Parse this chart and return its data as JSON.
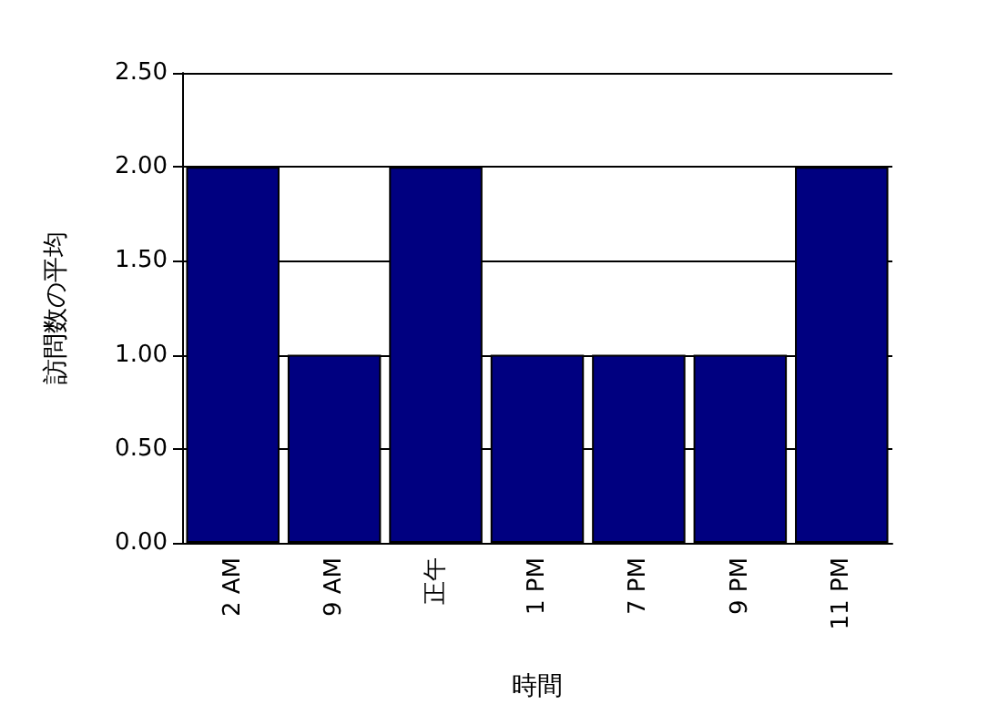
{
  "chart_data": {
    "type": "bar",
    "xlabel": "時間",
    "ylabel": "訪問数の平均",
    "categories": [
      "2 AM",
      "9 AM",
      "正午",
      "1 PM",
      "7 PM",
      "9 PM",
      "11 PM"
    ],
    "values": [
      2,
      1,
      2,
      1,
      1,
      1,
      2
    ],
    "color": "#000080",
    "ylim": [
      0,
      2.5
    ],
    "yticks": [
      {
        "value": 0,
        "label": "0.00"
      },
      {
        "value": 0.5,
        "label": "0.50"
      },
      {
        "value": 1,
        "label": "1.00"
      },
      {
        "value": 1.5,
        "label": "1.50"
      },
      {
        "value": 2,
        "label": "2.00"
      },
      {
        "value": 2.5,
        "label": "2.50"
      }
    ],
    "grid": "y"
  }
}
